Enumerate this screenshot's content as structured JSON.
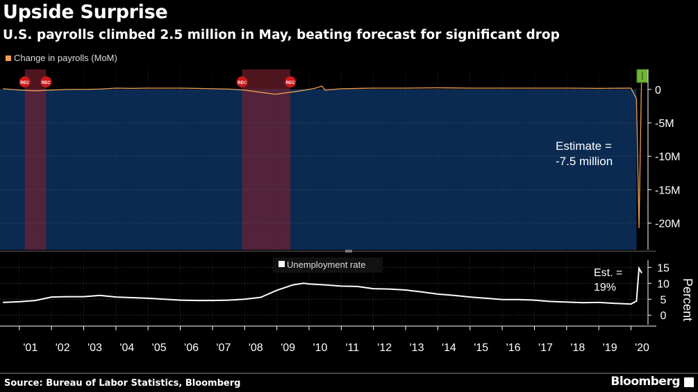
{
  "header": {
    "title": "Upside Surprise",
    "subtitle": "U.S. payrolls climbed 2.5 million in May, beating forecast for significant drop"
  },
  "footer": {
    "source": "Source: Bureau of Labor Statistics, Bloomberg",
    "brand": "Bloomberg"
  },
  "chart_data": [
    {
      "type": "line",
      "legend": [
        "Change in payrolls (MoM)"
      ],
      "series": [
        {
          "name": "Change in payrolls (MoM)",
          "color": "#f0a050",
          "x": [
            2000.5,
            2001.0,
            2001.5,
            2002.0,
            2002.5,
            2003.0,
            2003.5,
            2004.0,
            2004.5,
            2005.0,
            2005.5,
            2006.0,
            2006.5,
            2007.0,
            2007.5,
            2008.0,
            2008.3,
            2008.6,
            2008.9,
            2009.0,
            2009.3,
            2009.6,
            2010.0,
            2010.2,
            2010.4,
            2010.5,
            2011.0,
            2012.0,
            2013.0,
            2014.0,
            2015.0,
            2016.0,
            2017.0,
            2018.0,
            2019.0,
            2020.0,
            2020.17,
            2020.25,
            2020.33
          ],
          "values": [
            0.1,
            -0.1,
            -0.2,
            -0.1,
            0.0,
            0.0,
            0.05,
            0.2,
            0.15,
            0.2,
            0.2,
            0.2,
            0.15,
            0.1,
            0.05,
            -0.1,
            -0.3,
            -0.5,
            -0.7,
            -0.7,
            -0.5,
            -0.3,
            0.0,
            0.2,
            0.5,
            -0.1,
            0.1,
            0.2,
            0.2,
            0.25,
            0.2,
            0.2,
            0.2,
            0.2,
            0.15,
            0.2,
            -1.4,
            -20.7,
            2.5
          ]
        }
      ],
      "annotations": [
        {
          "text": "Estimate =",
          "text2": "-7.5 million"
        }
      ],
      "shaded_periods": [
        {
          "start": 2001.17,
          "end": 2001.83,
          "label_start": "REC",
          "label_end": "REC"
        },
        {
          "start": 2007.92,
          "end": 2009.42,
          "label_start": "REC",
          "label_end": "REC"
        }
      ],
      "y_ticks": [
        "0",
        "-5M",
        "-10M",
        "-15M",
        "-20M"
      ],
      "y_tick_values": [
        0,
        -5,
        -10,
        -15,
        -20
      ],
      "ylim": [
        -24,
        3
      ],
      "estimate_value": -7.5,
      "grid": true
    },
    {
      "type": "line",
      "legend": [
        "Unemployment rate"
      ],
      "ylabel": "Percent",
      "series": [
        {
          "name": "Unemployment rate",
          "color": "#ffffff",
          "x": [
            2000.5,
            2001.0,
            2001.5,
            2002.0,
            2002.5,
            2003.0,
            2003.5,
            2004.0,
            2004.5,
            2005.0,
            2005.5,
            2006.0,
            2006.5,
            2007.0,
            2007.5,
            2008.0,
            2008.5,
            2009.0,
            2009.5,
            2009.83,
            2010.0,
            2010.5,
            2011.0,
            2011.5,
            2012.0,
            2012.5,
            2013.0,
            2013.5,
            2014.0,
            2014.5,
            2015.0,
            2015.5,
            2016.0,
            2016.5,
            2017.0,
            2017.5,
            2018.0,
            2018.5,
            2019.0,
            2019.5,
            2020.0,
            2020.17,
            2020.25,
            2020.33
          ],
          "values": [
            4.0,
            4.2,
            4.6,
            5.7,
            5.8,
            5.8,
            6.2,
            5.7,
            5.5,
            5.3,
            5.0,
            4.7,
            4.6,
            4.6,
            4.7,
            5.0,
            5.6,
            7.8,
            9.5,
            10.0,
            9.8,
            9.5,
            9.1,
            9.0,
            8.3,
            8.2,
            7.9,
            7.3,
            6.6,
            6.2,
            5.7,
            5.3,
            4.9,
            4.9,
            4.7,
            4.3,
            4.1,
            3.9,
            4.0,
            3.7,
            3.5,
            4.4,
            14.7,
            13.3
          ]
        }
      ],
      "annotations": [
        {
          "text": "Est. =",
          "text2": "19%"
        }
      ],
      "y_ticks": [
        "0",
        "5",
        "10",
        "15"
      ],
      "y_tick_values": [
        0,
        5,
        10,
        15
      ],
      "ylim": [
        -3,
        19
      ],
      "grid": true
    }
  ],
  "x_axis": {
    "labels": [
      "'01",
      "'02",
      "'03",
      "'04",
      "'05",
      "'06",
      "'07",
      "'08",
      "'09",
      "'10",
      "'11",
      "'12",
      "'13",
      "'14",
      "'15",
      "'16",
      "'17",
      "'18",
      "'19",
      "'20"
    ],
    "years": [
      2001,
      2002,
      2003,
      2004,
      2005,
      2006,
      2007,
      2008,
      2009,
      2010,
      2011,
      2012,
      2013,
      2014,
      2015,
      2016,
      2017,
      2018,
      2019,
      2020
    ]
  },
  "colors": {
    "background": "#000000",
    "area_fill": "#0a2a52",
    "recession": "#7a2030",
    "payrolls": "#f0a050",
    "unemployment": "#ffffff",
    "estimate_marker": "#74b33a"
  }
}
